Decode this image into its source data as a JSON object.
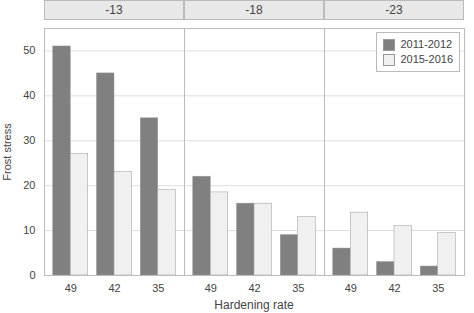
{
  "chart_data": [
    {
      "type": "bar",
      "title": "-13",
      "categories": [
        "49",
        "42",
        "35"
      ],
      "series": [
        {
          "name": "2011-2012",
          "color": "#808080",
          "values": [
            51,
            45,
            35
          ]
        },
        {
          "name": "2015-2016",
          "color": "#f0f0f0",
          "values": [
            27,
            23,
            19
          ]
        }
      ],
      "ylabel": "Frost stress",
      "ylim": [
        0,
        55
      ],
      "yticks": [
        0,
        10,
        20,
        30,
        40,
        50
      ],
      "grid": true
    },
    {
      "type": "bar",
      "title": "-18",
      "categories": [
        "49",
        "42",
        "35"
      ],
      "series": [
        {
          "name": "2011-2012",
          "color": "#808080",
          "values": [
            22,
            16,
            9
          ]
        },
        {
          "name": "2015-2016",
          "color": "#f0f0f0",
          "values": [
            18.5,
            16,
            13
          ]
        }
      ],
      "xlabel": "Hardening rate",
      "ylim": [
        0,
        55
      ],
      "yticks": [
        0,
        10,
        20,
        30,
        40,
        50
      ],
      "grid": true,
      "tick_labels": "x"
    },
    {
      "type": "bar",
      "title": "-23",
      "categories": [
        "49",
        "42",
        "35"
      ],
      "series": [
        {
          "name": "2011-2012",
          "color": "#808080",
          "values": [
            6,
            3,
            2
          ]
        },
        {
          "name": "2015-2016",
          "color": "#f0f0f0",
          "values": [
            14,
            11,
            9.5
          ]
        }
      ],
      "ylim": [
        0,
        55
      ],
      "yticks": [
        0,
        10,
        20,
        30,
        40,
        50
      ],
      "grid": true,
      "tick_labels": "x",
      "legend": "upper right"
    }
  ]
}
